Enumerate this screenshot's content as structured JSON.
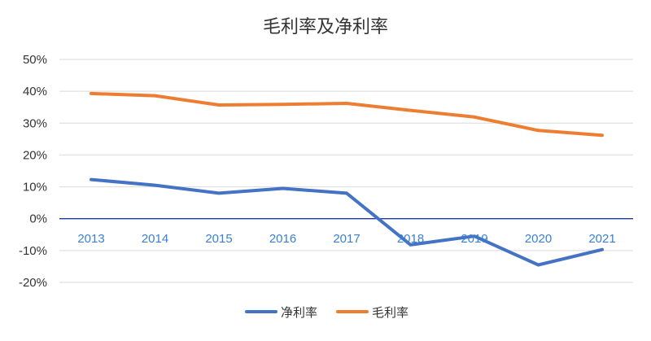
{
  "chart_data": {
    "type": "line",
    "title": "毛利率及净利率",
    "xlabel": "",
    "ylabel": "",
    "categories": [
      "2013",
      "2014",
      "2015",
      "2016",
      "2017",
      "2018",
      "2019",
      "2020",
      "2021"
    ],
    "ylim": [
      -20,
      50
    ],
    "yticks": [
      "50%",
      "40%",
      "30%",
      "20%",
      "10%",
      "0%",
      "-10%",
      "-20%"
    ],
    "ytick_values": [
      50,
      40,
      30,
      20,
      10,
      0,
      -10,
      -20
    ],
    "grid": true,
    "legend_position": "bottom",
    "series": [
      {
        "name": "净利率",
        "color": "#4472c4",
        "values": [
          12.3,
          10.5,
          8.0,
          9.5,
          8.0,
          -8.2,
          -5.5,
          -14.5,
          -9.7
        ]
      },
      {
        "name": "毛利率",
        "color": "#ed7d31",
        "values": [
          39.3,
          38.6,
          35.7,
          35.9,
          36.2,
          34.0,
          31.9,
          27.7,
          26.2
        ]
      }
    ]
  }
}
